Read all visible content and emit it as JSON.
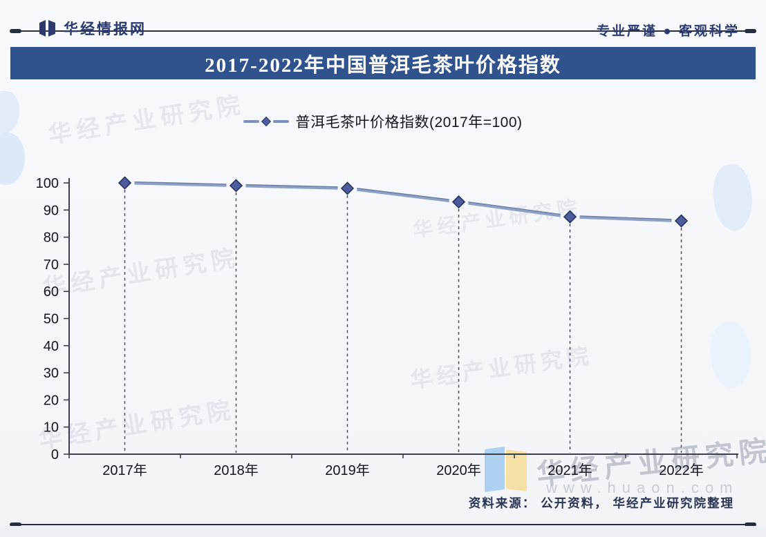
{
  "header": {
    "brand": "华经情报网",
    "slogan": "专业严谨 ● 客观科学",
    "accent_color": "#2c3a6f"
  },
  "banner": {
    "title": "2017-2022年中国普洱毛茶叶价格指数",
    "bg_color": "#30538e",
    "text_color": "#ffffff"
  },
  "legend": {
    "label": "普洱毛茶叶价格指数(2017年=100)"
  },
  "chart_data": {
    "type": "line",
    "title": "2017-2022年中国普洱毛茶叶价格指数",
    "categories": [
      "2017年",
      "2018年",
      "2019年",
      "2020年",
      "2021年",
      "2022年"
    ],
    "series": [
      {
        "name": "普洱毛茶叶价格指数(2017年=100)",
        "values": [
          100,
          99,
          98,
          93,
          87.5,
          86
        ]
      }
    ],
    "ylim": [
      0,
      100
    ],
    "ytick_step": 10,
    "grid": false,
    "legend_position": "top",
    "marker": "diamond",
    "droplines": "dashed",
    "line_color": "#8ea0c5",
    "line_edge_color": "#64779f",
    "marker_color": "#4c5c9d",
    "marker_edge_color": "#26345c",
    "axis_color": "#3a3f4d",
    "dropline_color": "#4d4d59",
    "tick_label_color": "#14141c"
  },
  "watermarks": {
    "diagonal_text": "华经产业研究院",
    "brand_text": "华经产业研究院",
    "url": "www.huaon.com"
  },
  "footer": {
    "source": "资料来源： 公开资料， 华经产业研究院整理"
  }
}
